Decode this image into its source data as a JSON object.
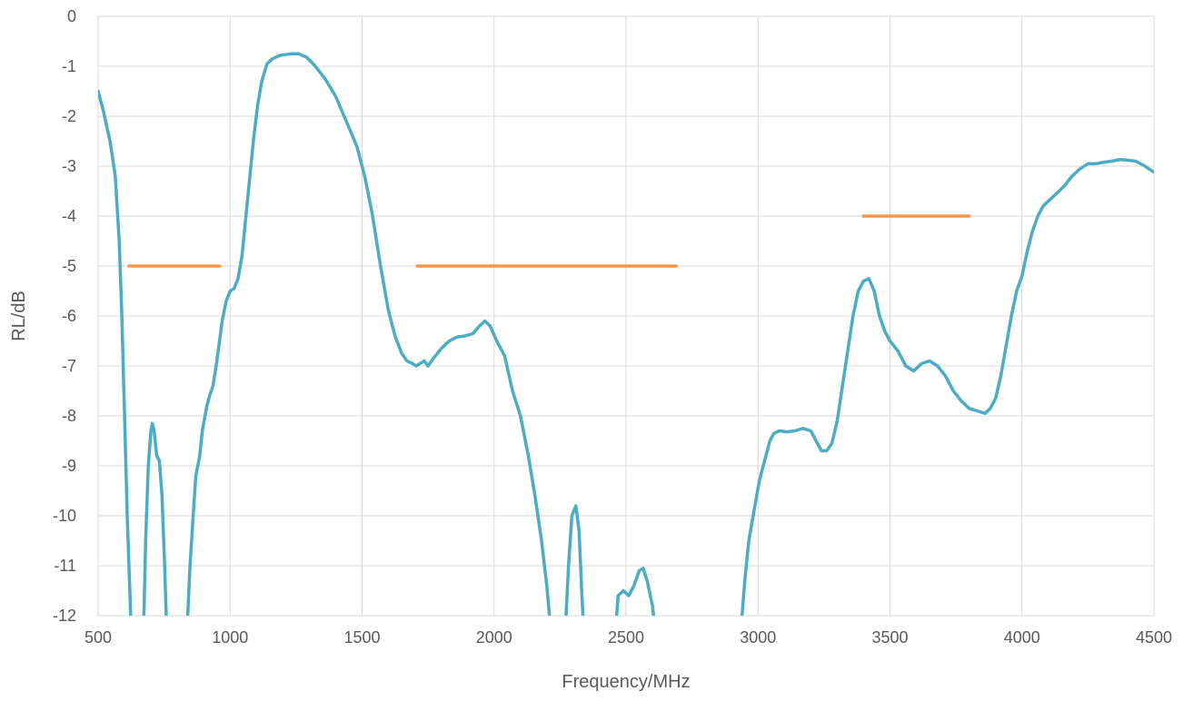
{
  "chart_data": {
    "type": "line",
    "title": "",
    "xlabel": "Frequency/MHz",
    "ylabel": "RL/dB",
    "xlim": [
      500,
      4500
    ],
    "ylim": [
      -12,
      0
    ],
    "xticks": [
      500,
      1000,
      1500,
      2000,
      2500,
      3000,
      3500,
      4000,
      4500
    ],
    "yticks": [
      0,
      -1,
      -2,
      -3,
      -4,
      -5,
      -6,
      -7,
      -8,
      -9,
      -10,
      -11,
      -12
    ],
    "grid": true,
    "legend": "none",
    "colors": {
      "rl_curve": "#4bacc6",
      "limit_lines": "#f79646"
    },
    "series": [
      {
        "points": [
          [
            500,
            -1.5
          ],
          [
            520,
            -1.9
          ],
          [
            545,
            -2.5
          ],
          [
            565,
            -3.2
          ],
          [
            580,
            -4.5
          ],
          [
            590,
            -6.0
          ],
          [
            600,
            -8.0
          ],
          [
            610,
            -10.0
          ],
          [
            620,
            -11.5
          ],
          [
            625,
            -12.3
          ],
          null,
          [
            672,
            -12.3
          ],
          [
            680,
            -10.5
          ],
          [
            690,
            -9.0
          ],
          [
            700,
            -8.3
          ],
          [
            705,
            -8.15
          ],
          [
            712,
            -8.3
          ],
          [
            722,
            -8.8
          ],
          [
            732,
            -8.9
          ],
          [
            742,
            -9.6
          ],
          [
            752,
            -11.0
          ],
          [
            760,
            -12.3
          ],
          null,
          [
            837,
            -12.3
          ],
          [
            848,
            -11.0
          ],
          [
            860,
            -10.0
          ],
          [
            870,
            -9.2
          ],
          [
            885,
            -8.8
          ],
          [
            895,
            -8.3
          ],
          [
            905,
            -8.0
          ],
          [
            912,
            -7.8
          ],
          [
            922,
            -7.6
          ],
          [
            935,
            -7.4
          ],
          [
            950,
            -6.9
          ],
          [
            960,
            -6.5
          ],
          [
            970,
            -6.1
          ],
          [
            985,
            -5.7
          ],
          [
            1000,
            -5.5
          ],
          [
            1015,
            -5.45
          ],
          [
            1030,
            -5.25
          ],
          [
            1045,
            -4.8
          ],
          [
            1060,
            -4.0
          ],
          [
            1075,
            -3.2
          ],
          [
            1090,
            -2.4
          ],
          [
            1105,
            -1.75
          ],
          [
            1120,
            -1.3
          ],
          [
            1140,
            -0.95
          ],
          [
            1160,
            -0.85
          ],
          [
            1190,
            -0.78
          ],
          [
            1230,
            -0.75
          ],
          [
            1260,
            -0.75
          ],
          [
            1290,
            -0.82
          ],
          [
            1320,
            -0.98
          ],
          [
            1360,
            -1.25
          ],
          [
            1400,
            -1.6
          ],
          [
            1440,
            -2.1
          ],
          [
            1480,
            -2.6
          ],
          [
            1510,
            -3.2
          ],
          [
            1540,
            -4.0
          ],
          [
            1570,
            -5.0
          ],
          [
            1600,
            -5.9
          ],
          [
            1625,
            -6.4
          ],
          [
            1650,
            -6.75
          ],
          [
            1670,
            -6.9
          ],
          [
            1690,
            -6.95
          ],
          [
            1705,
            -7.0
          ],
          [
            1720,
            -6.95
          ],
          [
            1735,
            -6.9
          ],
          [
            1750,
            -7.0
          ],
          [
            1770,
            -6.85
          ],
          [
            1800,
            -6.65
          ],
          [
            1830,
            -6.5
          ],
          [
            1860,
            -6.42
          ],
          [
            1890,
            -6.4
          ],
          [
            1920,
            -6.35
          ],
          [
            1945,
            -6.2
          ],
          [
            1965,
            -6.1
          ],
          [
            1985,
            -6.2
          ],
          [
            2010,
            -6.5
          ],
          [
            2040,
            -6.8
          ],
          [
            2070,
            -7.5
          ],
          [
            2100,
            -8.0
          ],
          [
            2130,
            -8.8
          ],
          [
            2155,
            -9.6
          ],
          [
            2180,
            -10.5
          ],
          [
            2200,
            -11.4
          ],
          [
            2215,
            -12.3
          ],
          null,
          [
            2270,
            -12.3
          ],
          [
            2282,
            -11.0
          ],
          [
            2295,
            -10.0
          ],
          [
            2310,
            -9.8
          ],
          [
            2322,
            -10.3
          ],
          [
            2332,
            -11.5
          ],
          [
            2340,
            -12.3
          ],
          null,
          [
            2460,
            -12.3
          ],
          [
            2470,
            -11.6
          ],
          [
            2490,
            -11.5
          ],
          [
            2510,
            -11.6
          ],
          [
            2530,
            -11.4
          ],
          [
            2550,
            -11.1
          ],
          [
            2565,
            -11.05
          ],
          [
            2580,
            -11.3
          ],
          [
            2600,
            -11.8
          ],
          [
            2610,
            -12.3
          ],
          null,
          [
            2935,
            -12.3
          ],
          [
            2950,
            -11.3
          ],
          [
            2965,
            -10.5
          ],
          [
            2985,
            -9.9
          ],
          [
            3005,
            -9.3
          ],
          [
            3025,
            -8.9
          ],
          [
            3045,
            -8.5
          ],
          [
            3060,
            -8.35
          ],
          [
            3080,
            -8.3
          ],
          [
            3110,
            -8.32
          ],
          [
            3140,
            -8.3
          ],
          [
            3170,
            -8.25
          ],
          [
            3200,
            -8.3
          ],
          [
            3220,
            -8.5
          ],
          [
            3240,
            -8.7
          ],
          [
            3260,
            -8.7
          ],
          [
            3280,
            -8.55
          ],
          [
            3300,
            -8.1
          ],
          [
            3320,
            -7.4
          ],
          [
            3340,
            -6.7
          ],
          [
            3360,
            -6.0
          ],
          [
            3380,
            -5.5
          ],
          [
            3400,
            -5.3
          ],
          [
            3420,
            -5.25
          ],
          [
            3440,
            -5.5
          ],
          [
            3460,
            -6.0
          ],
          [
            3480,
            -6.3
          ],
          [
            3500,
            -6.5
          ],
          [
            3530,
            -6.7
          ],
          [
            3560,
            -7.0
          ],
          [
            3590,
            -7.1
          ],
          [
            3620,
            -6.95
          ],
          [
            3650,
            -6.9
          ],
          [
            3680,
            -7.0
          ],
          [
            3710,
            -7.2
          ],
          [
            3740,
            -7.5
          ],
          [
            3770,
            -7.7
          ],
          [
            3800,
            -7.85
          ],
          [
            3830,
            -7.9
          ],
          [
            3860,
            -7.95
          ],
          [
            3880,
            -7.85
          ],
          [
            3900,
            -7.65
          ],
          [
            3920,
            -7.2
          ],
          [
            3940,
            -6.6
          ],
          [
            3960,
            -6.0
          ],
          [
            3980,
            -5.5
          ],
          [
            4000,
            -5.2
          ],
          [
            4020,
            -4.7
          ],
          [
            4040,
            -4.3
          ],
          [
            4060,
            -4.0
          ],
          [
            4080,
            -3.8
          ],
          [
            4100,
            -3.7
          ],
          [
            4130,
            -3.55
          ],
          [
            4160,
            -3.4
          ],
          [
            4190,
            -3.2
          ],
          [
            4220,
            -3.05
          ],
          [
            4250,
            -2.95
          ],
          [
            4280,
            -2.95
          ],
          [
            4310,
            -2.92
          ],
          [
            4340,
            -2.9
          ],
          [
            4370,
            -2.87
          ],
          [
            4400,
            -2.88
          ],
          [
            4430,
            -2.9
          ],
          [
            4460,
            -2.98
          ],
          [
            4500,
            -3.12
          ]
        ]
      },
      {
        "points": [
          [
            617,
            -5
          ],
          [
            960,
            -5
          ]
        ]
      },
      {
        "points": [
          [
            1710,
            -5
          ],
          [
            2690,
            -5
          ]
        ]
      },
      {
        "points": [
          [
            3400,
            -4
          ],
          [
            3800,
            -4
          ]
        ]
      }
    ]
  }
}
